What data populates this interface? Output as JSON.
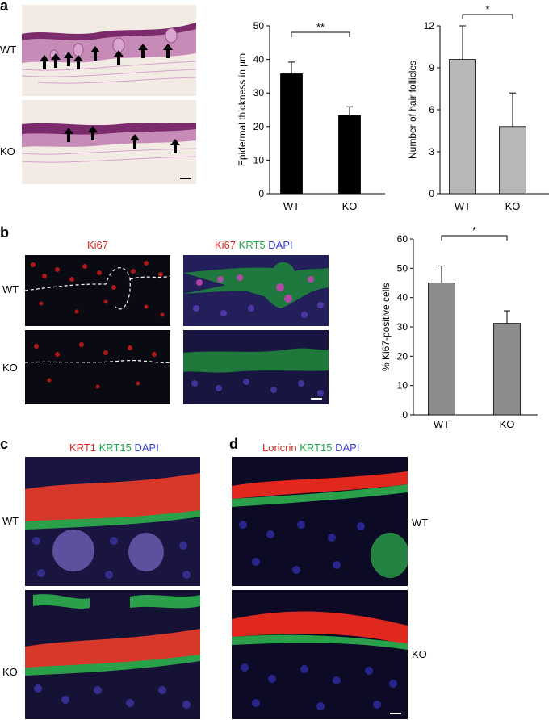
{
  "panels": {
    "a": {
      "letter": "a",
      "labels": [
        "WT",
        "KO"
      ],
      "scale_bar": true
    },
    "b": {
      "letter": "b",
      "left_title": "Ki67",
      "right_title": {
        "part1": "Ki67",
        "part2": "KRT5",
        "part3": "DAPI"
      },
      "labels": [
        "WT",
        "KO"
      ]
    },
    "c": {
      "letter": "c",
      "title": {
        "part1": "KRT1",
        "part2": "KRT15",
        "part3": "DAPI"
      },
      "labels": [
        "WT",
        "KO"
      ]
    },
    "d": {
      "letter": "d",
      "title": {
        "part1": "Loricrin",
        "part2": "KRT15",
        "part3": "DAPI"
      },
      "labels": [
        "WT",
        "KO"
      ]
    }
  },
  "colors": {
    "red": "#e0211f",
    "green": "#1fa64a",
    "blue": "#3a3fd8",
    "bar_black": "#000000",
    "bar_light": "#b7b7b7",
    "bar_mid": "#8c8c8c"
  },
  "chart_data": [
    {
      "type": "bar",
      "categories": [
        "WT",
        "KO"
      ],
      "values": [
        35.7,
        23.3
      ],
      "errors": [
        3.5,
        2.6
      ],
      "ylabel": "Epidermal thickness in µm",
      "ylim": [
        0,
        50
      ],
      "yticks": [
        0,
        10,
        20,
        30,
        40,
        50
      ],
      "significance": "**",
      "color": "#000000"
    },
    {
      "type": "bar",
      "categories": [
        "WT",
        "KO"
      ],
      "values": [
        9.6,
        4.8
      ],
      "errors": [
        2.4,
        2.4
      ],
      "ylabel": "Number of hair follicles",
      "ylim": [
        0,
        12
      ],
      "yticks": [
        0,
        3,
        6,
        9,
        12
      ],
      "significance": "*",
      "color": "#b7b7b7"
    },
    {
      "type": "bar",
      "categories": [
        "WT",
        "KO"
      ],
      "values": [
        45,
        31.2
      ],
      "errors": [
        5.8,
        4.3
      ],
      "ylabel": "% Ki67-positive cells",
      "ylim": [
        0,
        60
      ],
      "yticks": [
        0,
        10,
        20,
        30,
        40,
        50,
        60
      ],
      "significance": "*",
      "color": "#8c8c8c"
    }
  ]
}
